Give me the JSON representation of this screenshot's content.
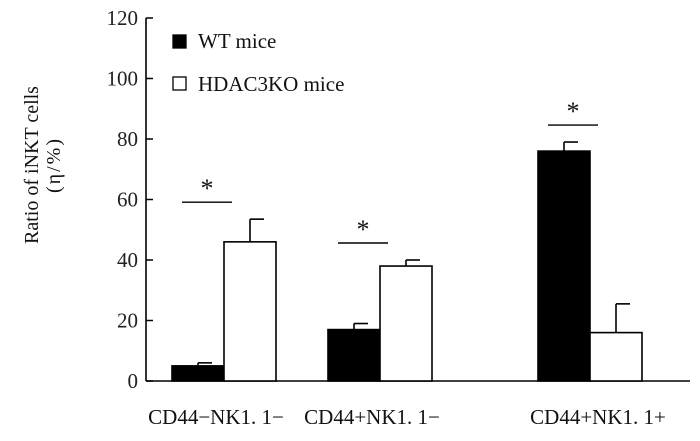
{
  "chart_data": {
    "type": "bar",
    "categories": [
      "CD44−NK1. 1−",
      "CD44+NK1. 1−",
      "CD44+NK1. 1+"
    ],
    "series": [
      {
        "name": "WT mice",
        "values": [
          5,
          17,
          76
        ],
        "errors": [
          1,
          2,
          3
        ],
        "color": "#000000"
      },
      {
        "name": "HDAC3KO mice",
        "values": [
          46,
          38,
          16
        ],
        "errors": [
          7.5,
          2,
          9.5
        ],
        "color": "#ffffff"
      }
    ],
    "ylabel_line1": "Ratio of iNKT cells",
    "ylabel_line2": "(η/%)",
    "ylim": [
      0,
      120
    ],
    "yticks": [
      0,
      20,
      40,
      60,
      80,
      100,
      120
    ],
    "significance": [
      "*",
      "*",
      "*"
    ],
    "legend_position": "top-left",
    "grid": false
  }
}
